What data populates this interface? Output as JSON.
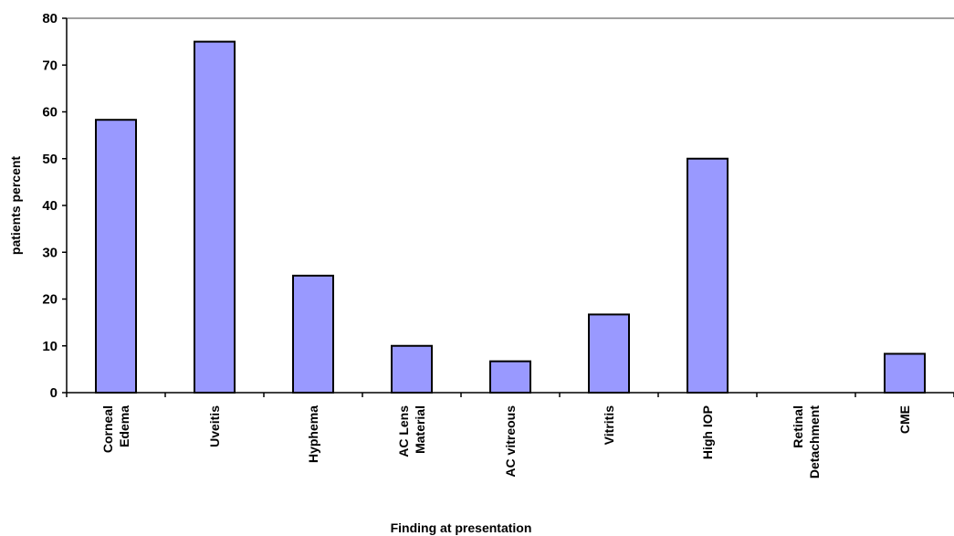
{
  "chart_data": {
    "type": "bar",
    "title": "",
    "xlabel": "Finding  at presentation",
    "ylabel": "patients percent",
    "ylim": [
      0,
      80
    ],
    "yticks": [
      0,
      10,
      20,
      30,
      40,
      50,
      60,
      70,
      80
    ],
    "grid": false,
    "legend": "none",
    "categories": [
      [
        "Corneal",
        "Edema"
      ],
      [
        "Uveitis"
      ],
      [
        "Hyphema"
      ],
      [
        "AC Lens",
        "Material"
      ],
      [
        "AC vitreous"
      ],
      [
        "Vitritis"
      ],
      [
        "High IOP"
      ],
      [
        "Retinal",
        "Detachment"
      ],
      [
        "CME"
      ]
    ],
    "series": [
      {
        "values": [
          58.3,
          75,
          25,
          10,
          6.7,
          16.7,
          50,
          0,
          8.3
        ]
      }
    ],
    "colors": {
      "bar_fill": "#9999ff",
      "bar_stroke": "#000000",
      "axis": "#000000",
      "plot_border": "#808080"
    }
  }
}
